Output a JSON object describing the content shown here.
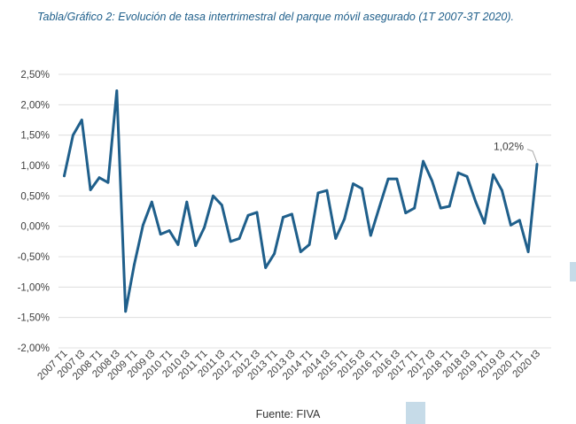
{
  "title": "Tabla/Gráfico 2: Evolución de tasa intertrimestral del parque móvil asegurado (1T 2007-3T 2020).",
  "source": "Fuente: FIVA",
  "colors": {
    "line": "#1f5f8b",
    "title": "#1f5f8b",
    "grid": "#d9d9d9",
    "axis_text": "#404040",
    "deco": "#c6dbe8"
  },
  "chart_data": {
    "type": "line",
    "x": [
      "2007 T1",
      "2007 T2",
      "2007 t3",
      "2007 T4",
      "2008 T1",
      "2008 T2",
      "2008 t3",
      "2008 T4",
      "2009 T1",
      "2009 T2",
      "2009 t3",
      "2009 T4",
      "2010 T1",
      "2010 T2",
      "2010 t3",
      "2010 T4",
      "2011 T1",
      "2011 T2",
      "2011 t3",
      "2011 T4",
      "2012 T1",
      "2012 T2",
      "2012 t3",
      "2012 T4",
      "2013 T1",
      "2013 T2",
      "2013 t3",
      "2013 T4",
      "2014 T1",
      "2014 T2",
      "2014 t3",
      "2014 T4",
      "2015 T1",
      "2015 T2",
      "2015 t3",
      "2015 T4",
      "2016 T1",
      "2016 T2",
      "2016 t3",
      "2016 T4",
      "2017 T1",
      "2017 T2",
      "2017 t3",
      "2017 T4",
      "2018 T1",
      "2018 T2",
      "2018 t3",
      "2018 T4",
      "2019 T1",
      "2019 T2",
      "2019 t3",
      "2019 T4",
      "2020 T1",
      "2020 T2",
      "2020 t3"
    ],
    "x_tick_labels": [
      "2007 T1",
      "2007 t3",
      "2008 T1",
      "2008 t3",
      "2009 T1",
      "2009 t3",
      "2010 T1",
      "2010 t3",
      "2011 T1",
      "2011 t3",
      "2012 T1",
      "2012 t3",
      "2013 T1",
      "2013 t3",
      "2014 T1",
      "2014 t3",
      "2015 T1",
      "2015 t3",
      "2016 T1",
      "2016 t3",
      "2017 T1",
      "2017 t3",
      "2018 T1",
      "2018 t3",
      "2019 T1",
      "2019 t3",
      "2020 T1",
      "2020 t3"
    ],
    "series": [
      {
        "values": [
          0.83,
          1.5,
          1.75,
          0.6,
          0.8,
          0.72,
          2.23,
          -1.4,
          -0.63,
          0.02,
          0.4,
          -0.13,
          -0.07,
          -0.3,
          0.4,
          -0.32,
          -0.02,
          0.5,
          0.35,
          -0.25,
          -0.2,
          0.18,
          0.23,
          -0.68,
          -0.45,
          0.15,
          0.2,
          -0.42,
          -0.3,
          0.55,
          0.59,
          -0.2,
          0.12,
          0.7,
          0.62,
          -0.15,
          0.32,
          0.78,
          0.78,
          0.22,
          0.3,
          1.07,
          0.75,
          0.3,
          0.33,
          0.88,
          0.82,
          0.4,
          0.05,
          0.85,
          0.59,
          0.02,
          0.1,
          -0.42,
          1.02
        ]
      }
    ],
    "y_tick_labels": [
      "2,50%",
      "2,00%",
      "1,50%",
      "1,00%",
      "0,50%",
      "0,00%",
      "-0,50%",
      "-1,00%",
      "-1,50%",
      "-2,00%"
    ],
    "ylim": [
      -2.0,
      2.5
    ],
    "annotation": {
      "text": "1,02%"
    },
    "grid": true
  }
}
